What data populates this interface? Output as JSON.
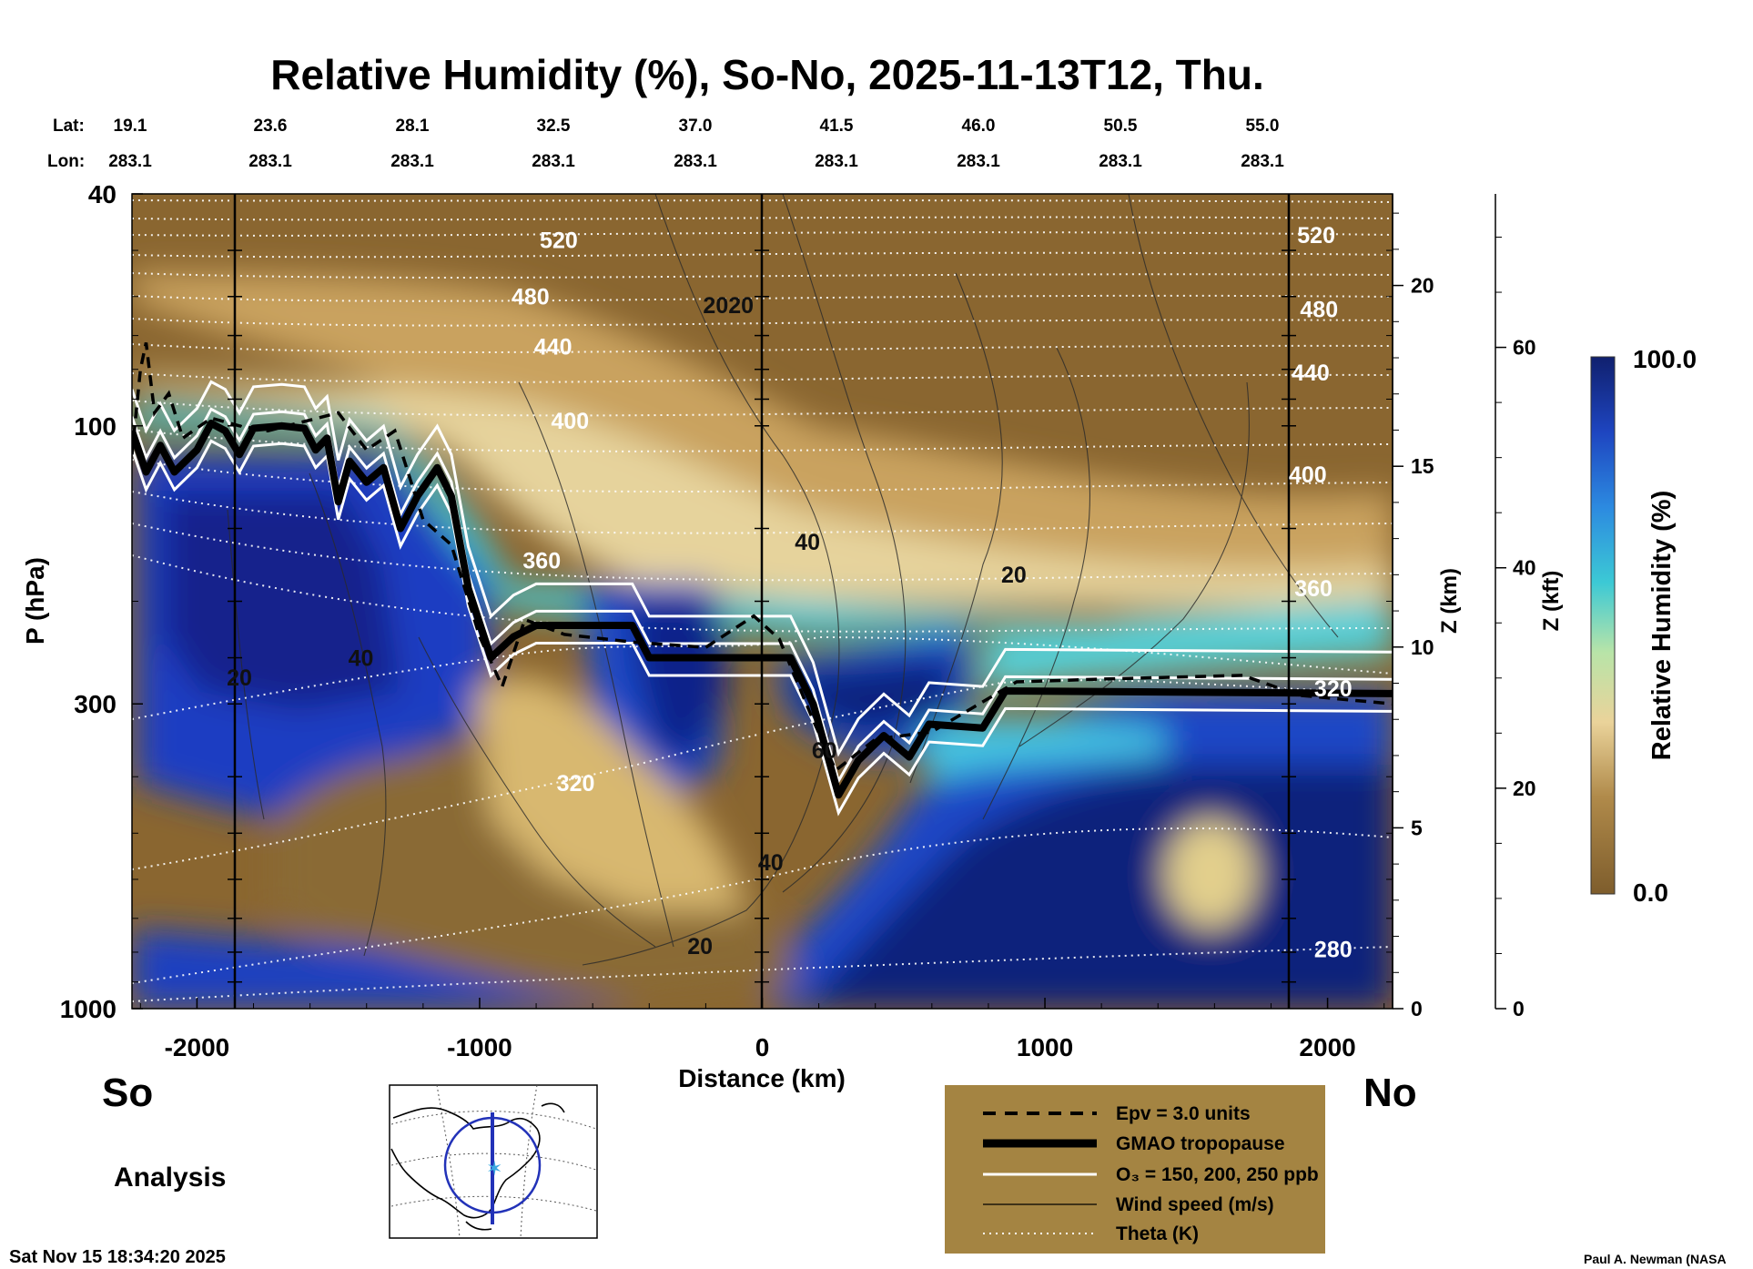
{
  "title": "Relative Humidity (%), So-No, 2025-11-13T12, Thu.",
  "lat_label": "Lat:",
  "lon_label": "Lon:",
  "lat_values": [
    "19.1",
    "23.6",
    "28.1",
    "32.5",
    "37.0",
    "41.5",
    "46.0",
    "50.5",
    "55.0"
  ],
  "lon_values": [
    "283.1",
    "283.1",
    "283.1",
    "283.1",
    "283.1",
    "283.1",
    "283.1",
    "283.1",
    "283.1"
  ],
  "direction_left": "So",
  "direction_right": "No",
  "analysis_label": "Analysis",
  "timestamp": "Sat Nov 15 18:34:20 2025",
  "credit": "Paul A. Newman (NASA",
  "colors": {
    "dry": "#7e5d2c",
    "tan": "#c8a05a",
    "light": "#e8d49a",
    "cyan": "#38c8d8",
    "blue": "#1e50c8",
    "dark_blue": "#10207a",
    "legend_bg": "#a48442"
  },
  "chart_data": {
    "type": "heatmap",
    "title": "Relative Humidity (%), So-No, 2025-11-13T12, Thu.",
    "xlabel": "Distance (km)",
    "ylabel": "P (hPa)",
    "xlim": [
      -2230,
      2230
    ],
    "ylim": [
      1000,
      40
    ],
    "y_scale": "log",
    "x_ticks": [
      -2000,
      -1000,
      0,
      1000,
      2000
    ],
    "x_tick_labels": [
      "-2000",
      "-1000",
      "0",
      "1000",
      "2000"
    ],
    "y_ticks": [
      40,
      100,
      300,
      1000
    ],
    "y_tick_labels": [
      "40",
      "100",
      "300",
      "1000"
    ],
    "z_km": {
      "label": "Z (km)",
      "ticks": [
        0,
        5,
        10,
        15,
        20
      ],
      "tick_labels": [
        "0",
        "5",
        "10",
        "15",
        "20"
      ]
    },
    "z_kft": {
      "label": "Z (kft)",
      "ticks": [
        0,
        20,
        40,
        60
      ],
      "tick_labels": [
        "0",
        "20",
        "40",
        "60"
      ]
    },
    "colorbar": {
      "label": "Relative Humidity (%)",
      "min": 0.0,
      "max": 100.0,
      "min_label": "0.0",
      "max_label": "100.0"
    },
    "theta_labels": [
      {
        "text": "520",
        "x": -720,
        "p": 48
      },
      {
        "text": "480",
        "x": -820,
        "p": 60
      },
      {
        "text": "440",
        "x": -740,
        "p": 73
      },
      {
        "text": "400",
        "x": -680,
        "p": 98
      },
      {
        "text": "360",
        "x": -780,
        "p": 170
      },
      {
        "text": "320",
        "x": -660,
        "p": 410
      },
      {
        "text": "520",
        "x": 1960,
        "p": 47
      },
      {
        "text": "480",
        "x": 1970,
        "p": 63
      },
      {
        "text": "440",
        "x": 1940,
        "p": 81
      },
      {
        "text": "400",
        "x": 1930,
        "p": 121
      },
      {
        "text": "360",
        "x": 1950,
        "p": 190
      },
      {
        "text": "320",
        "x": 2020,
        "p": 282
      },
      {
        "text": "280",
        "x": 2020,
        "p": 790
      }
    ],
    "wind_labels": [
      {
        "text": "2020",
        "x": -120,
        "p": 62
      },
      {
        "text": "40",
        "x": 160,
        "p": 158
      },
      {
        "text": "20",
        "x": 890,
        "p": 180
      },
      {
        "text": "40",
        "x": -1420,
        "p": 250
      },
      {
        "text": "20",
        "x": -1850,
        "p": 270
      },
      {
        "text": "60",
        "x": 220,
        "p": 360
      },
      {
        "text": "40",
        "x": 30,
        "p": 560
      },
      {
        "text": "20",
        "x": -220,
        "p": 780
      }
    ],
    "tropopause": [
      {
        "x": -2230,
        "p": 102
      },
      {
        "x": -2180,
        "p": 120
      },
      {
        "x": -2130,
        "p": 108
      },
      {
        "x": -2080,
        "p": 120
      },
      {
        "x": -2000,
        "p": 110
      },
      {
        "x": -1950,
        "p": 99
      },
      {
        "x": -1900,
        "p": 102
      },
      {
        "x": -1850,
        "p": 112
      },
      {
        "x": -1800,
        "p": 101
      },
      {
        "x": -1700,
        "p": 100
      },
      {
        "x": -1620,
        "p": 101
      },
      {
        "x": -1580,
        "p": 110
      },
      {
        "x": -1540,
        "p": 105
      },
      {
        "x": -1500,
        "p": 135
      },
      {
        "x": -1460,
        "p": 115
      },
      {
        "x": -1400,
        "p": 125
      },
      {
        "x": -1340,
        "p": 118
      },
      {
        "x": -1280,
        "p": 150
      },
      {
        "x": -1220,
        "p": 132
      },
      {
        "x": -1150,
        "p": 118
      },
      {
        "x": -1100,
        "p": 132
      },
      {
        "x": -1040,
        "p": 190
      },
      {
        "x": -960,
        "p": 250
      },
      {
        "x": -880,
        "p": 230
      },
      {
        "x": -800,
        "p": 220
      },
      {
        "x": -460,
        "p": 220
      },
      {
        "x": -400,
        "p": 250
      },
      {
        "x": -200,
        "p": 250
      },
      {
        "x": 100,
        "p": 250
      },
      {
        "x": 180,
        "p": 300
      },
      {
        "x": 270,
        "p": 430
      },
      {
        "x": 340,
        "p": 375
      },
      {
        "x": 430,
        "p": 340
      },
      {
        "x": 520,
        "p": 370
      },
      {
        "x": 590,
        "p": 325
      },
      {
        "x": 780,
        "p": 330
      },
      {
        "x": 860,
        "p": 285
      },
      {
        "x": 2230,
        "p": 288
      }
    ],
    "epv": [
      {
        "x": -2230,
        "p": 112
      },
      {
        "x": -2200,
        "p": 80
      },
      {
        "x": -2180,
        "p": 72
      },
      {
        "x": -2150,
        "p": 95
      },
      {
        "x": -2100,
        "p": 88
      },
      {
        "x": -2050,
        "p": 105
      },
      {
        "x": -1950,
        "p": 97
      },
      {
        "x": -1850,
        "p": 100
      },
      {
        "x": -1750,
        "p": 102
      },
      {
        "x": -1500,
        "p": 95
      },
      {
        "x": -1400,
        "p": 110
      },
      {
        "x": -1300,
        "p": 102
      },
      {
        "x": -1200,
        "p": 145
      },
      {
        "x": -1100,
        "p": 160
      },
      {
        "x": -1000,
        "p": 230
      },
      {
        "x": -920,
        "p": 280
      },
      {
        "x": -840,
        "p": 215
      },
      {
        "x": -700,
        "p": 228
      },
      {
        "x": -460,
        "p": 235
      },
      {
        "x": -200,
        "p": 240
      },
      {
        "x": -30,
        "p": 212
      },
      {
        "x": 60,
        "p": 232
      },
      {
        "x": 180,
        "p": 320
      },
      {
        "x": 260,
        "p": 390
      },
      {
        "x": 400,
        "p": 345
      },
      {
        "x": 600,
        "p": 335
      },
      {
        "x": 900,
        "p": 275
      },
      {
        "x": 1200,
        "p": 272
      },
      {
        "x": 1700,
        "p": 268
      },
      {
        "x": 1900,
        "p": 290
      },
      {
        "x": 2230,
        "p": 300
      }
    ],
    "legend": [
      {
        "style": "dashed",
        "label": "Epv = 3.0 units"
      },
      {
        "style": "thick",
        "label": "GMAO tropopause"
      },
      {
        "style": "white",
        "label": "O₃ = 150, 200, 250 ppb"
      },
      {
        "style": "thin",
        "label": "Wind speed (m/s)"
      },
      {
        "style": "dotted",
        "label": "Theta (K)"
      }
    ],
    "grid": false,
    "legend_position": "bottom-center"
  }
}
